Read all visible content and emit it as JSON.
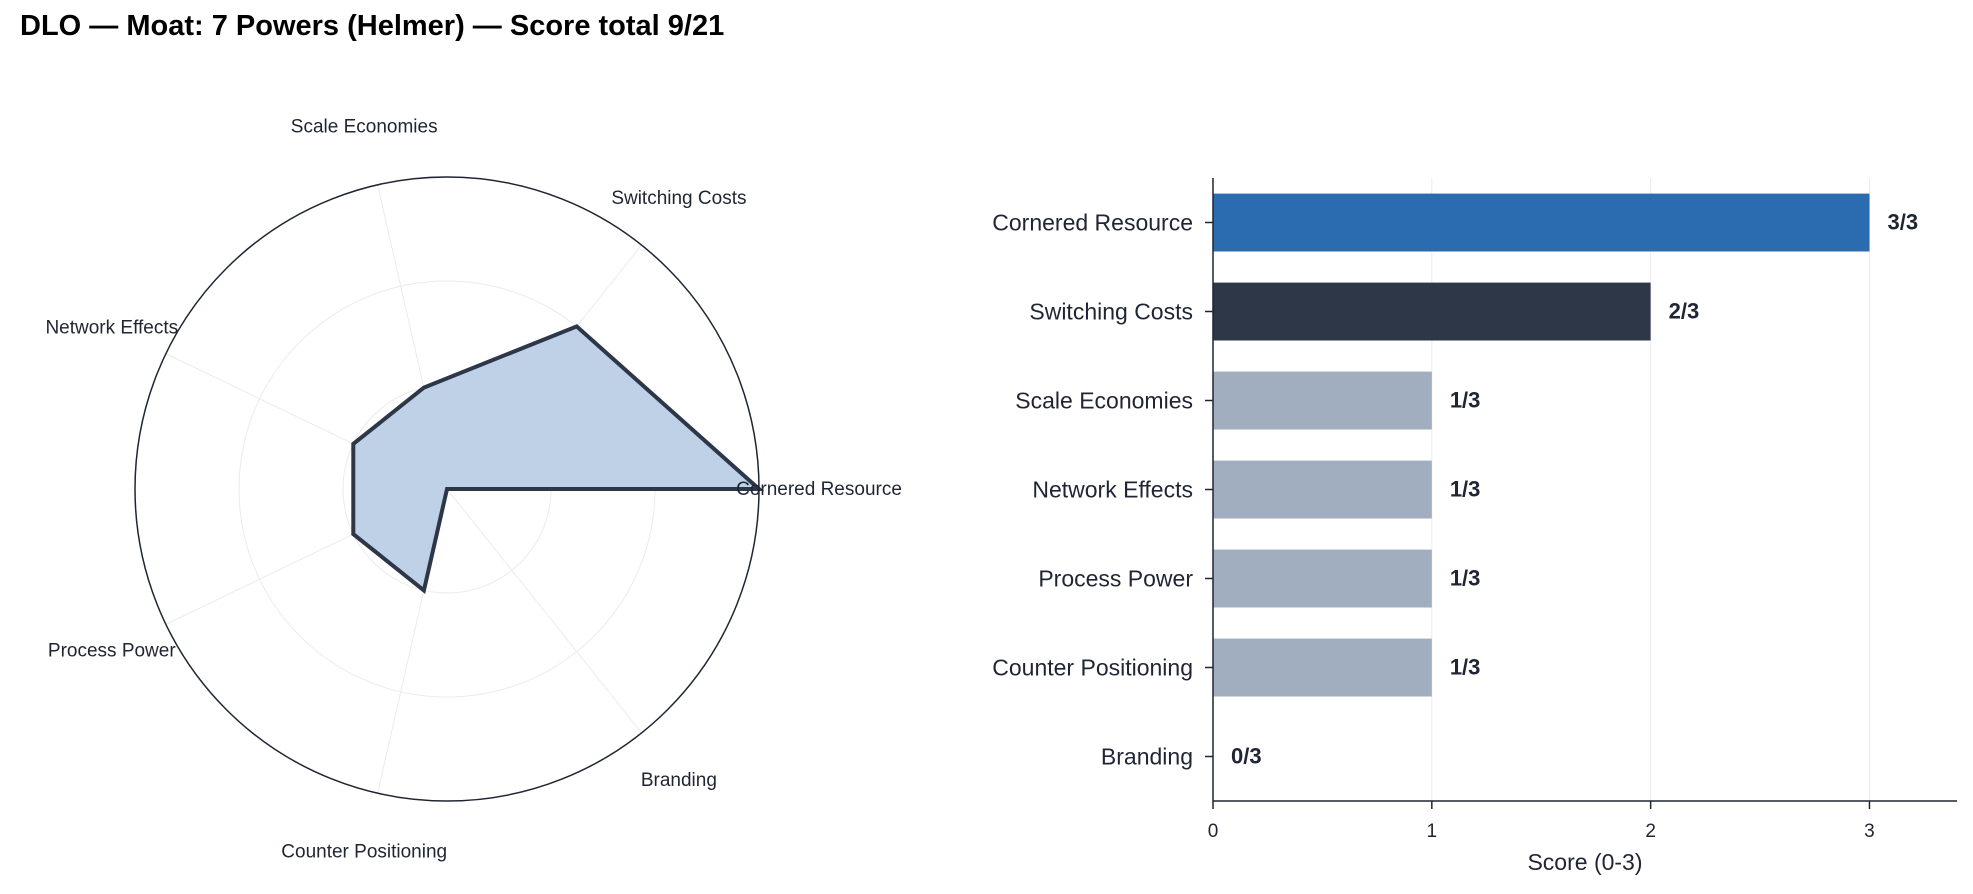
{
  "title": "DLO — Moat: 7 Powers (Helmer) — Score total 9/21",
  "chart_data": [
    {
      "type": "radar",
      "categories": [
        "Cornered Resource",
        "Switching Costs",
        "Scale Economies",
        "Network Effects",
        "Process Power",
        "Counter Positioning",
        "Branding"
      ],
      "values": [
        3,
        2,
        1,
        1,
        1,
        1,
        0
      ],
      "rlim": [
        0,
        3
      ],
      "grid": true,
      "colors": {
        "fill": "#bfd1e7",
        "line": "#2d3748"
      }
    },
    {
      "type": "bar",
      "orientation": "horizontal",
      "categories": [
        "Cornered Resource",
        "Switching Costs",
        "Scale Economies",
        "Network Effects",
        "Process Power",
        "Counter Positioning",
        "Branding"
      ],
      "values": [
        3,
        2,
        1,
        1,
        1,
        1,
        0
      ],
      "value_labels": [
        "3/3",
        "2/3",
        "1/3",
        "1/3",
        "1/3",
        "1/3",
        "0/3"
      ],
      "xlabel": "Score (0-3)",
      "xticks": [
        "0",
        "1",
        "2",
        "3"
      ],
      "xlim": [
        0,
        3.4
      ],
      "grid": true,
      "colors": {
        "max": "#2b6cb0",
        "second": "#2d3748",
        "other": "#a0aec0"
      }
    }
  ]
}
